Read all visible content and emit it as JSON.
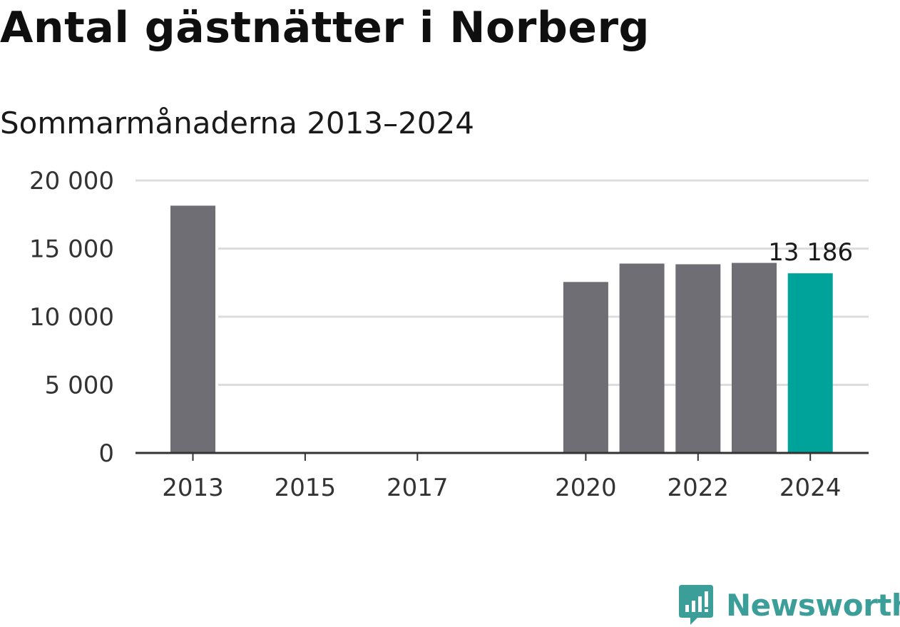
{
  "header": {
    "title": "Antal gästnätter i Norberg",
    "subtitle": "Sommarmånaderna 2013–2024"
  },
  "brand": {
    "name": "Newsworthy",
    "icon": "newsworthy-logo-icon",
    "color": "#3c9e99"
  },
  "colors": {
    "bar": "#6f6e74",
    "highlight": "#00a399",
    "grid": "#dddddd",
    "axis": "#333333"
  },
  "chart_data": {
    "type": "bar",
    "x": [
      2013,
      2014,
      2015,
      2016,
      2017,
      2018,
      2019,
      2020,
      2021,
      2022,
      2023,
      2024
    ],
    "values": [
      18150,
      null,
      null,
      null,
      null,
      null,
      null,
      12550,
      13900,
      13850,
      13950,
      13186
    ],
    "highlight_index": 11,
    "data_labels": [
      {
        "x": 2024,
        "label": "13 186"
      }
    ],
    "xticks": [
      2013,
      2015,
      2017,
      2020,
      2022,
      2024
    ],
    "xtick_labels": [
      "2013",
      "2015",
      "2017",
      "2020",
      "2022",
      "2024"
    ],
    "yticks": [
      0,
      5000,
      10000,
      15000,
      20000
    ],
    "ytick_labels": [
      "0",
      "5 000",
      "10 000",
      "15 000",
      "20 000"
    ],
    "ylim": [
      0,
      20000
    ],
    "grid": true,
    "legend": "none",
    "title": "Antal gästnätter i Norberg",
    "subtitle": "Sommarmånaderna 2013–2024"
  }
}
